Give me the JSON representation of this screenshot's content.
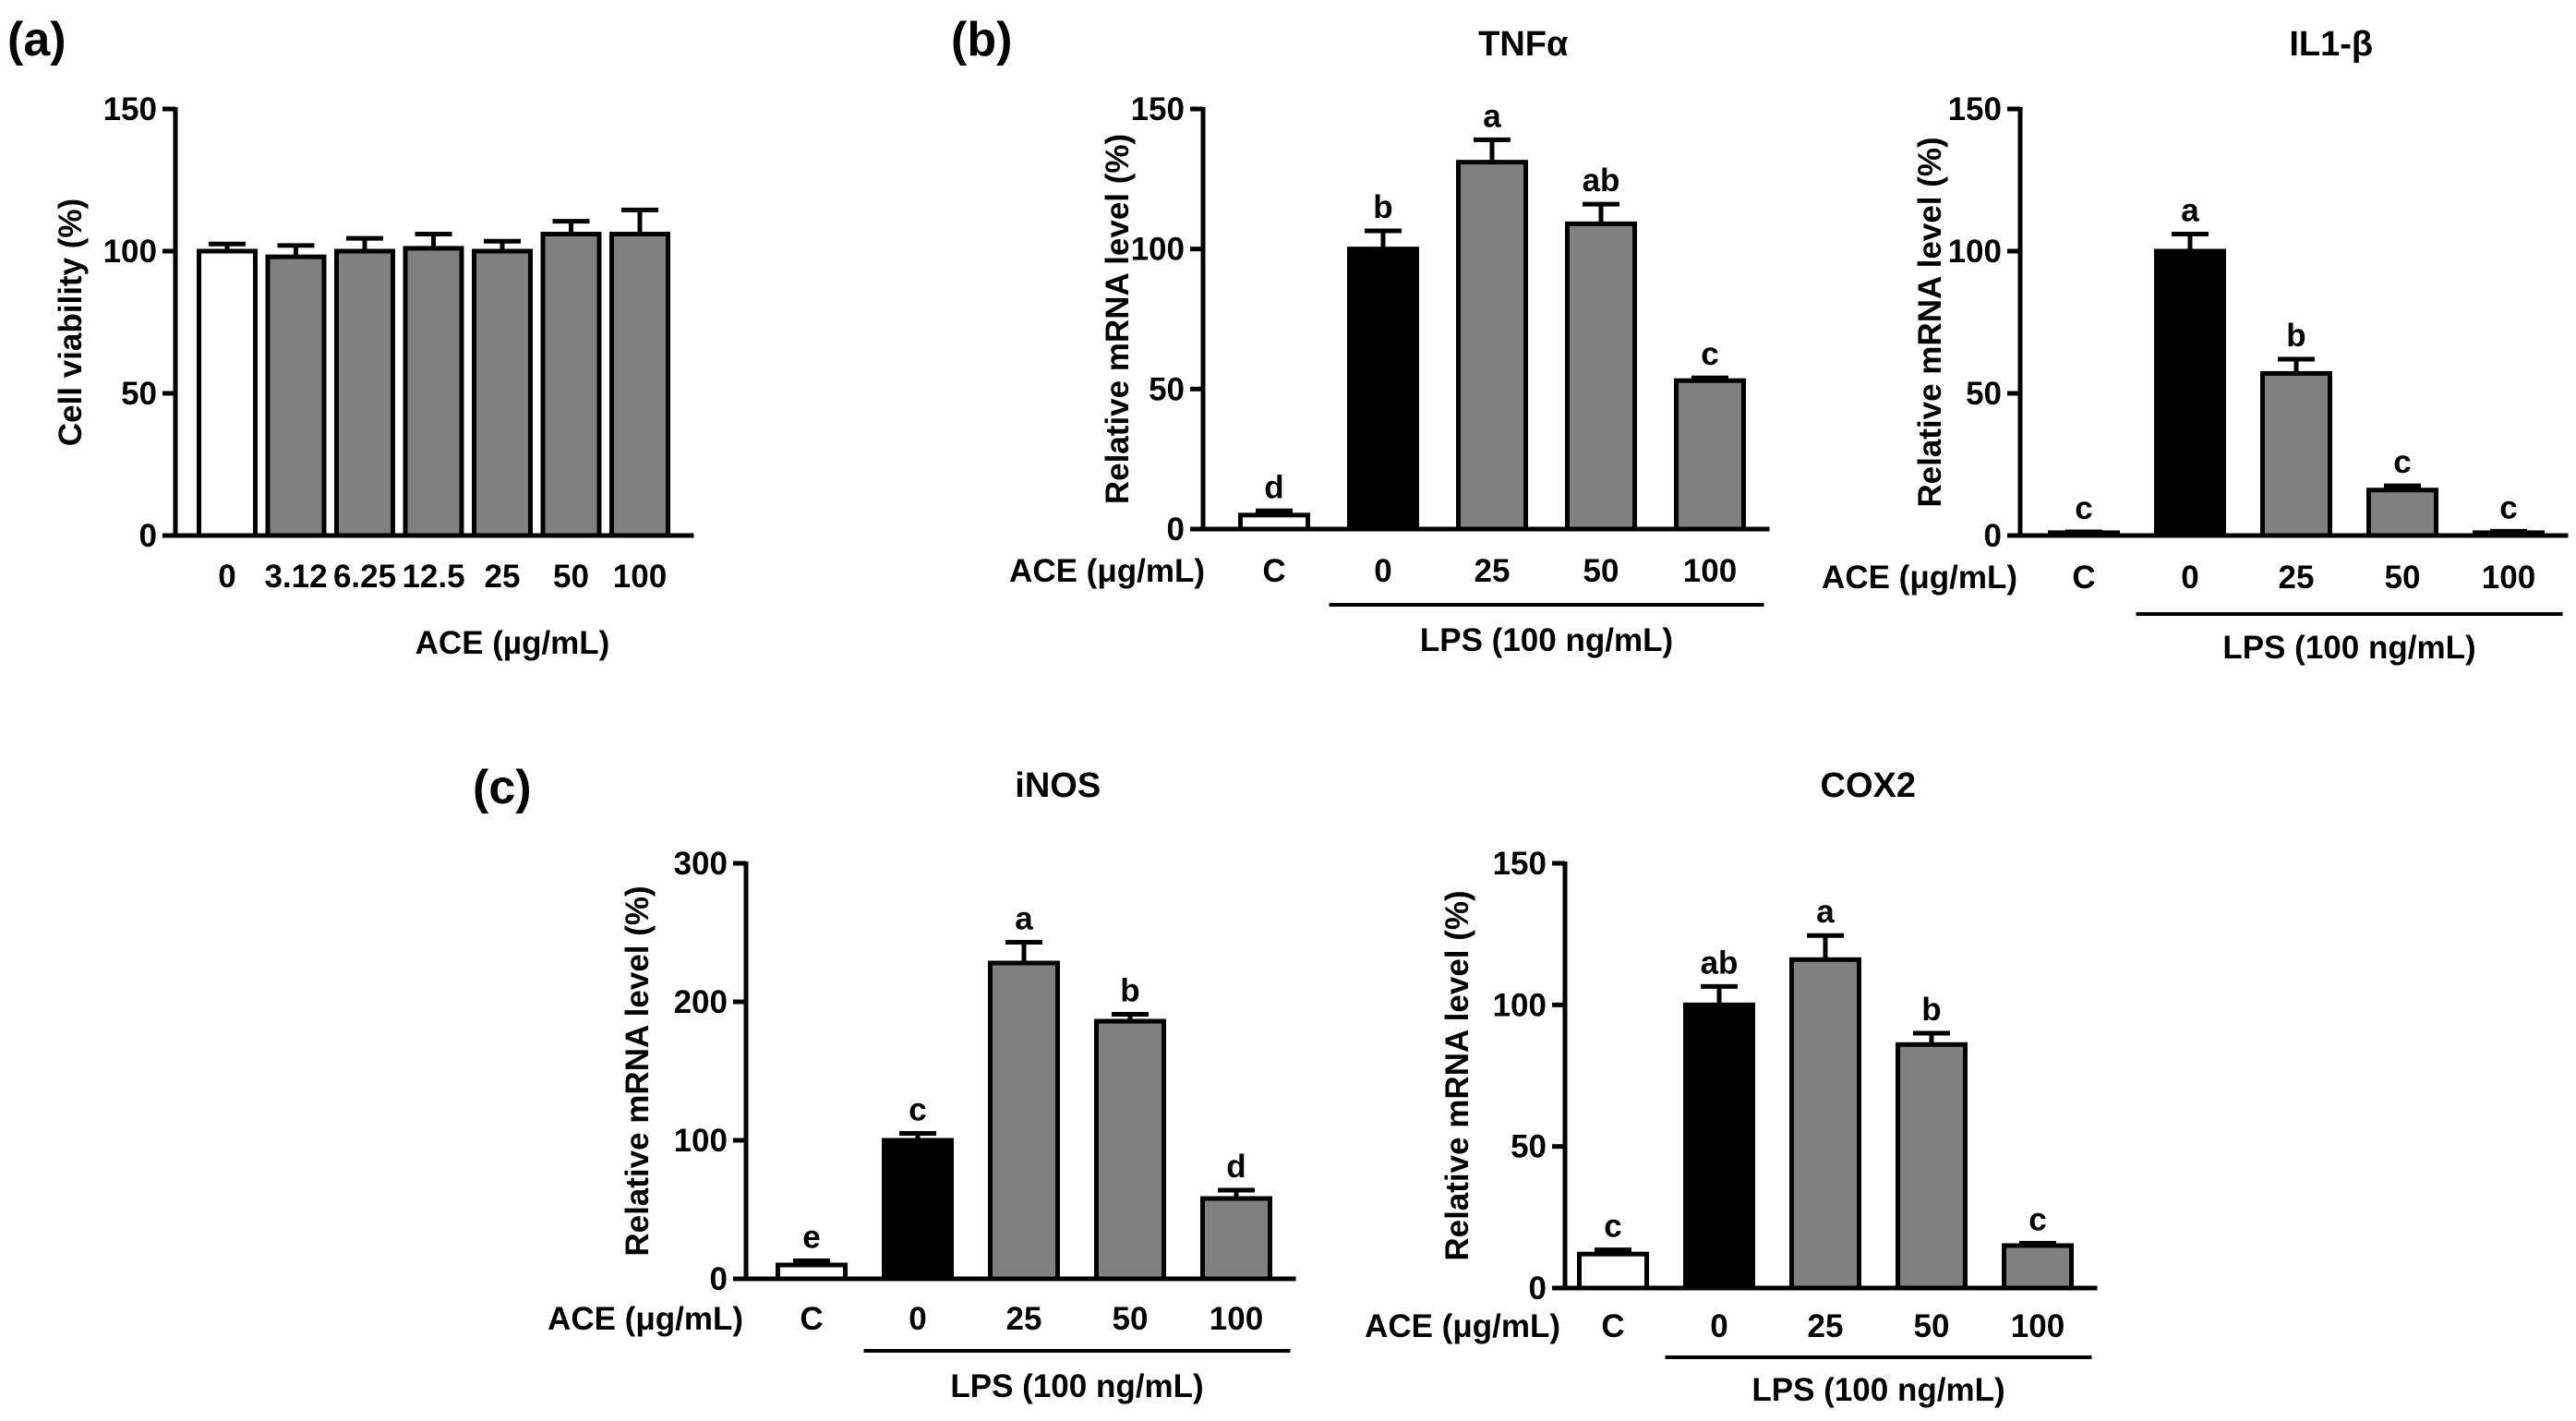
{
  "panels": [
    {
      "id": "a",
      "label": "(a)"
    },
    {
      "id": "b",
      "label": "(b)"
    },
    {
      "id": "c",
      "label": "(c)"
    }
  ],
  "colors": {
    "control": "#ffffff",
    "lps": "#000000",
    "treated": "#808080",
    "outline": "#000000"
  },
  "chart_data": [
    {
      "panel": "a",
      "type": "bar",
      "title": "",
      "xlabel": "ACE (µg/mL)",
      "ylabel": "Cell viability (%)",
      "ylim": [
        0,
        150
      ],
      "yticks": [
        0,
        50,
        100,
        150
      ],
      "categories": [
        "0",
        "3.12",
        "6.25",
        "12.5",
        "25",
        "50",
        "100"
      ],
      "values": [
        100,
        98,
        100,
        101,
        100,
        106,
        106
      ],
      "errors": [
        2.5,
        4,
        4.5,
        5,
        3.5,
        4.5,
        8.5
      ],
      "fills": [
        "control",
        "treated",
        "treated",
        "treated",
        "treated",
        "treated",
        "treated"
      ],
      "letters": [
        "",
        "",
        "",
        "",
        "",
        "",
        ""
      ]
    },
    {
      "panel": "b",
      "type": "bar",
      "title": "TNFα",
      "xprefix": "ACE (μg/mL)",
      "group_label": "LPS (100 ng/mL)",
      "ylabel": "Relative mRNA level (%)",
      "ylim": [
        0,
        150
      ],
      "yticks": [
        0,
        50,
        100,
        150
      ],
      "categories": [
        "C",
        "0",
        "25",
        "50",
        "100"
      ],
      "values": [
        5,
        100,
        131,
        109,
        53
      ],
      "errors": [
        1.5,
        6.5,
        8,
        7,
        1
      ],
      "fills": [
        "control",
        "lps",
        "treated",
        "treated",
        "treated"
      ],
      "letters": [
        "d",
        "b",
        "a",
        "ab",
        "c"
      ]
    },
    {
      "panel": "b",
      "type": "bar",
      "title": "IL1-β",
      "xprefix": "ACE (μg/mL)",
      "group_label": "LPS (100 ng/mL)",
      "ylabel": "Relative mRNA level (%)",
      "ylim": [
        0,
        150
      ],
      "yticks": [
        0,
        50,
        100,
        150
      ],
      "categories": [
        "C",
        "0",
        "25",
        "50",
        "100"
      ],
      "values": [
        1,
        100,
        57,
        16,
        1
      ],
      "errors": [
        0.3,
        6,
        5,
        1.5,
        0.5
      ],
      "fills": [
        "control",
        "lps",
        "treated",
        "treated",
        "treated"
      ],
      "letters": [
        "c",
        "a",
        "b",
        "c",
        "c"
      ]
    },
    {
      "panel": "c",
      "type": "bar",
      "title": "iNOS",
      "xprefix": "ACE (μg/mL)",
      "group_label": "LPS (100 ng/mL)",
      "ylabel": "Relative mRNA level (%)",
      "ylim": [
        0,
        300
      ],
      "yticks": [
        0,
        100,
        200,
        300
      ],
      "categories": [
        "C",
        "0",
        "25",
        "50",
        "100"
      ],
      "values": [
        10,
        100,
        228,
        186,
        58
      ],
      "errors": [
        3,
        5,
        15,
        5,
        6
      ],
      "fills": [
        "control",
        "lps",
        "treated",
        "treated",
        "treated"
      ],
      "letters": [
        "e",
        "c",
        "a",
        "b",
        "d"
      ]
    },
    {
      "panel": "c",
      "type": "bar",
      "title": "COX2",
      "xprefix": "ACE (μg/mL)",
      "group_label": "LPS (100 ng/mL)",
      "ylabel": "Relative mRNA level (%)",
      "ylim": [
        0,
        150
      ],
      "yticks": [
        0,
        50,
        100,
        150
      ],
      "categories": [
        "C",
        "0",
        "25",
        "50",
        "100"
      ],
      "values": [
        12,
        100,
        116,
        86,
        15
      ],
      "errors": [
        1.5,
        6.5,
        8.5,
        4,
        0.8
      ],
      "fills": [
        "control",
        "lps",
        "treated",
        "treated",
        "treated"
      ],
      "letters": [
        "c",
        "ab",
        "a",
        "b",
        "c"
      ]
    }
  ]
}
